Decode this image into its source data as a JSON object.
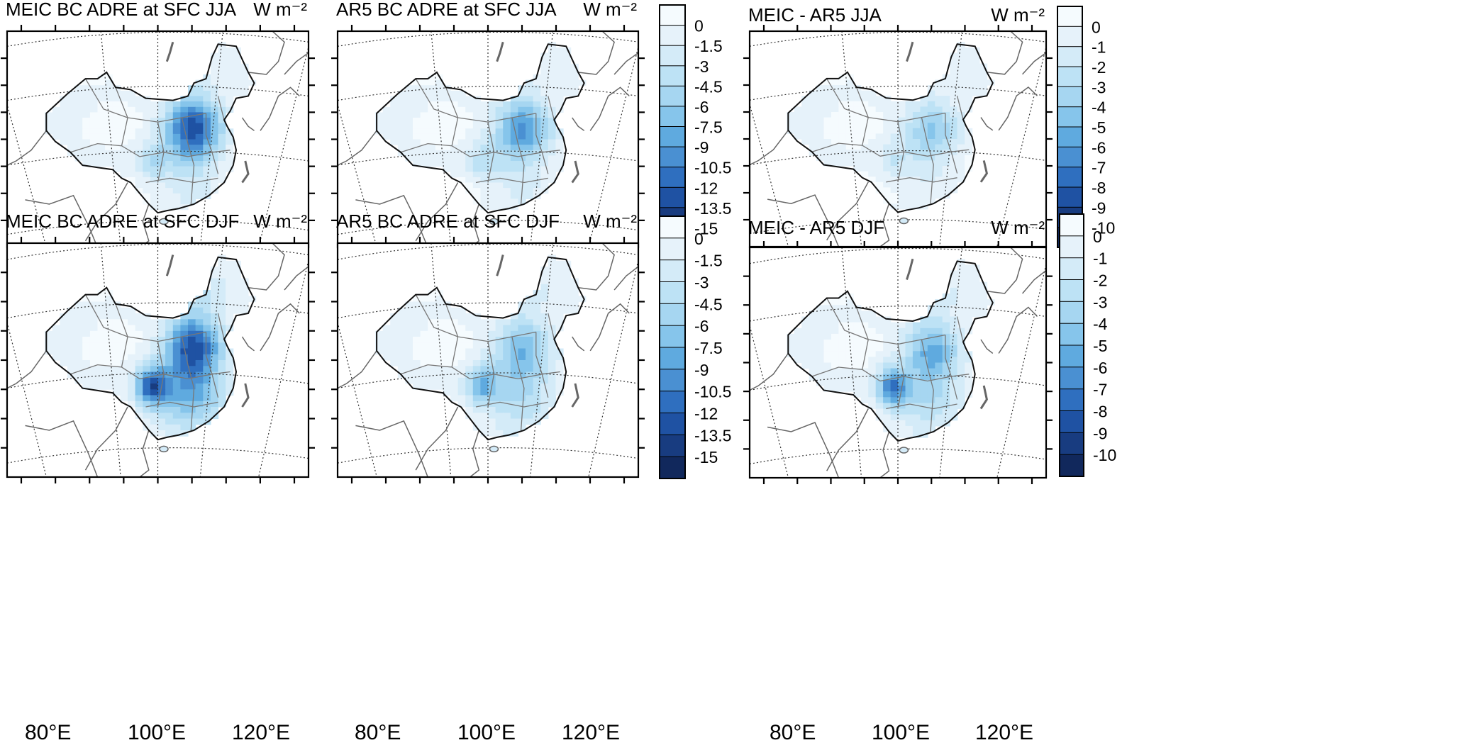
{
  "panels": [
    {
      "id": "meic-jja",
      "title": "MEIC BC ADRE at SFC JJA",
      "unit": "W m⁻²",
      "colorbar": "cb-15",
      "field": {
        "hot": 1.0,
        "south": 0.25,
        "sw": 0.35
      }
    },
    {
      "id": "ar5-jja",
      "title": "AR5 BC ADRE at SFC JJA",
      "unit": "W m⁻²",
      "colorbar": "cb-15",
      "field": {
        "hot": 0.7,
        "south": 0.22,
        "sw": 0.3
      }
    },
    {
      "id": "diff-jja",
      "title": "MEIC - AR5  JJA",
      "unit": "W m⁻²",
      "colorbar": "cb-10",
      "field": {
        "hot": 0.45,
        "south": 0.15,
        "sw": 0.2
      }
    },
    {
      "id": "meic-djf",
      "title": "MEIC BC ADRE at SFC DJF",
      "unit": "W m⁻²",
      "colorbar": "cb-15",
      "field": {
        "hot": 1.0,
        "south": 0.9,
        "sw": 1.0
      }
    },
    {
      "id": "ar5-djf",
      "title": "AR5 BC ADRE at SFC DJF",
      "unit": "W m⁻²",
      "colorbar": "cb-15",
      "field": {
        "hot": 0.55,
        "south": 0.55,
        "sw": 0.6
      }
    },
    {
      "id": "diff-djf",
      "title": "MEIC - AR5  DJF",
      "unit": "W m⁻²",
      "colorbar": "cb-10",
      "field": {
        "hot": 0.6,
        "south": 0.5,
        "sw": 0.95
      }
    }
  ],
  "colorbars": {
    "cb-15": {
      "labels": [
        "0",
        "-1.5",
        "-3",
        "-4.5",
        "-6",
        "-7.5",
        "-9",
        "-10.5",
        "-12",
        "-13.5",
        "-15"
      ]
    },
    "cb-10": {
      "labels": [
        "0",
        "-1",
        "-2",
        "-3",
        "-4",
        "-5",
        "-6",
        "-7",
        "-8",
        "-9",
        "-10"
      ]
    }
  },
  "colors": [
    "#f5fbfe",
    "#e6f2fa",
    "#d4ebf8",
    "#bde2f5",
    "#a6d6f1",
    "#86c5eb",
    "#5faadf",
    "#4a90d2",
    "#2f6fbf",
    "#1f52a3",
    "#183c80",
    "#11285c"
  ],
  "longitude_labels": [
    "80°E",
    "100°E",
    "120°E"
  ]
}
